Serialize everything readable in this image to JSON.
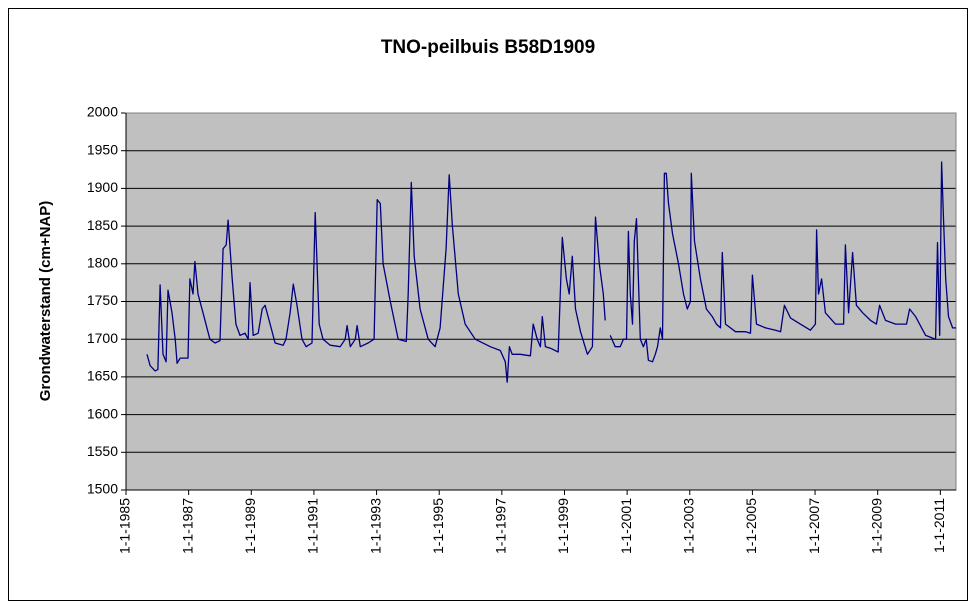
{
  "chart_data": {
    "type": "line",
    "title": "TNO-peilbuis B58D1909",
    "y_label": "Grondwaterstand (cm+NAP)",
    "x": [
      1985.67,
      1985.77,
      1985.93,
      1986.02,
      1986.09,
      1986.18,
      1986.28,
      1986.34,
      1986.47,
      1986.57,
      1986.63,
      1986.73,
      1986.98,
      1987.04,
      1987.14,
      1987.2,
      1987.3,
      1987.46,
      1987.68,
      1987.84,
      1988.0,
      1988.1,
      1988.2,
      1988.26,
      1988.39,
      1988.51,
      1988.64,
      1988.8,
      1988.9,
      1988.96,
      1989.06,
      1989.22,
      1989.35,
      1989.44,
      1989.6,
      1989.76,
      1990.02,
      1990.11,
      1990.24,
      1990.34,
      1990.46,
      1990.62,
      1990.75,
      1990.94,
      1991.04,
      1991.17,
      1991.29,
      1991.52,
      1991.84,
      1992.0,
      1992.06,
      1992.16,
      1992.32,
      1992.38,
      1992.48,
      1992.73,
      1992.92,
      1993.02,
      1993.12,
      1993.21,
      1993.44,
      1993.69,
      1993.95,
      1994.01,
      1994.11,
      1994.2,
      1994.39,
      1994.65,
      1994.87,
      1995.03,
      1995.22,
      1995.32,
      1995.42,
      1995.61,
      1995.83,
      1996.15,
      1996.63,
      1996.95,
      1997.11,
      1997.17,
      1997.24,
      1997.33,
      1997.59,
      1997.91,
      1998.0,
      1998.13,
      1998.23,
      1998.29,
      1998.39,
      1998.55,
      1998.8,
      1998.93,
      1999.06,
      1999.15,
      1999.25,
      1999.35,
      1999.51,
      1999.73,
      1999.89,
      1999.99,
      2000.11,
      2000.24,
      2000.3,
      2000.38,
      2000.46,
      2000.62,
      2000.78,
      2000.88,
      2000.98,
      2001.04,
      2001.1,
      2001.17,
      2001.23,
      2001.3,
      2001.36,
      2001.42,
      2001.52,
      2001.61,
      2001.68,
      2001.81,
      2001.9,
      2001.97,
      2002.06,
      2002.13,
      2002.19,
      2002.25,
      2002.32,
      2002.45,
      2002.64,
      2002.8,
      2002.92,
      2003.02,
      2003.05,
      2003.15,
      2003.34,
      2003.53,
      2003.72,
      2003.85,
      2003.98,
      2004.04,
      2004.14,
      2004.46,
      2004.78,
      2004.94,
      2005.0,
      2005.13,
      2005.42,
      2005.74,
      2005.9,
      2006.02,
      2006.22,
      2006.53,
      2006.85,
      2007.01,
      2007.05,
      2007.11,
      2007.21,
      2007.33,
      2007.65,
      2007.91,
      2007.97,
      2008.07,
      2008.2,
      2008.32,
      2008.52,
      2008.77,
      2008.96,
      2009.06,
      2009.25,
      2009.57,
      2009.92,
      2010.02,
      2010.21,
      2010.53,
      2010.85,
      2010.91,
      2010.98,
      2011.04,
      2011.1,
      2011.17,
      2011.26,
      2011.39,
      2011.5
    ],
    "series": [
      {
        "name": "B58D1909",
        "color": "#000080",
        "values": [
          1680,
          1665,
          1658,
          1660,
          1772,
          1680,
          1670,
          1765,
          1735,
          1700,
          1668,
          1675,
          1675,
          1780,
          1760,
          1803,
          1760,
          1735,
          1700,
          1695,
          1698,
          1820,
          1825,
          1858,
          1780,
          1720,
          1705,
          1708,
          1700,
          1775,
          1705,
          1708,
          1740,
          1745,
          1720,
          1695,
          1692,
          1700,
          1735,
          1773,
          1745,
          1700,
          1690,
          1695,
          1868,
          1720,
          1700,
          1692,
          1690,
          1700,
          1718,
          1690,
          1700,
          1718,
          1690,
          1695,
          1700,
          1885,
          1880,
          1800,
          1750,
          1700,
          1697,
          1760,
          1908,
          1810,
          1740,
          1700,
          1690,
          1715,
          1820,
          1918,
          1850,
          1760,
          1720,
          1700,
          1690,
          1685,
          1670,
          1643,
          1690,
          1680,
          1680,
          1678,
          1720,
          1700,
          1690,
          1730,
          1690,
          1688,
          1683,
          1835,
          1780,
          1760,
          1810,
          1740,
          1710,
          1680,
          1690,
          1862,
          1800,
          1760,
          1725,
          null,
          1705,
          1690,
          1690,
          1700,
          1700,
          1843,
          1760,
          1720,
          1830,
          1860,
          1780,
          1700,
          1690,
          1700,
          1672,
          1670,
          1680,
          1690,
          1715,
          1700,
          1920,
          1920,
          1880,
          1840,
          1800,
          1760,
          1740,
          1750,
          1920,
          1830,
          1780,
          1740,
          1730,
          1720,
          1715,
          1815,
          1720,
          1710,
          1710,
          1708,
          1785,
          1720,
          1715,
          1712,
          1710,
          1745,
          1728,
          1720,
          1712,
          1720,
          1845,
          1760,
          1780,
          1735,
          1720,
          1720,
          1825,
          1735,
          1815,
          1745,
          1735,
          1725,
          1720,
          1745,
          1725,
          1720,
          1720,
          1740,
          1730,
          1705,
          1700,
          1828,
          1705,
          1935,
          1860,
          1780,
          1730,
          1715,
          1715
        ]
      }
    ],
    "xlim": [
      1985,
      2011.5
    ],
    "xticks": [
      {
        "value": 1985,
        "label": "1-1-1985"
      },
      {
        "value": 1987,
        "label": "1-1-1987"
      },
      {
        "value": 1989,
        "label": "1-1-1989"
      },
      {
        "value": 1991,
        "label": "1-1-1991"
      },
      {
        "value": 1993,
        "label": "1-1-1993"
      },
      {
        "value": 1995,
        "label": "1-1-1995"
      },
      {
        "value": 1997,
        "label": "1-1-1997"
      },
      {
        "value": 1999,
        "label": "1-1-1999"
      },
      {
        "value": 2001,
        "label": "1-1-2001"
      },
      {
        "value": 2003,
        "label": "1-1-2003"
      },
      {
        "value": 2005,
        "label": "1-1-2005"
      },
      {
        "value": 2007,
        "label": "1-1-2007"
      },
      {
        "value": 2009,
        "label": "1-1-2009"
      },
      {
        "value": 2011,
        "label": "1-1-2011"
      }
    ],
    "ylim": [
      1500,
      2000
    ],
    "yticks": [
      1500,
      1550,
      1600,
      1650,
      1700,
      1750,
      1800,
      1850,
      1900,
      1950,
      2000
    ],
    "grid": true
  }
}
